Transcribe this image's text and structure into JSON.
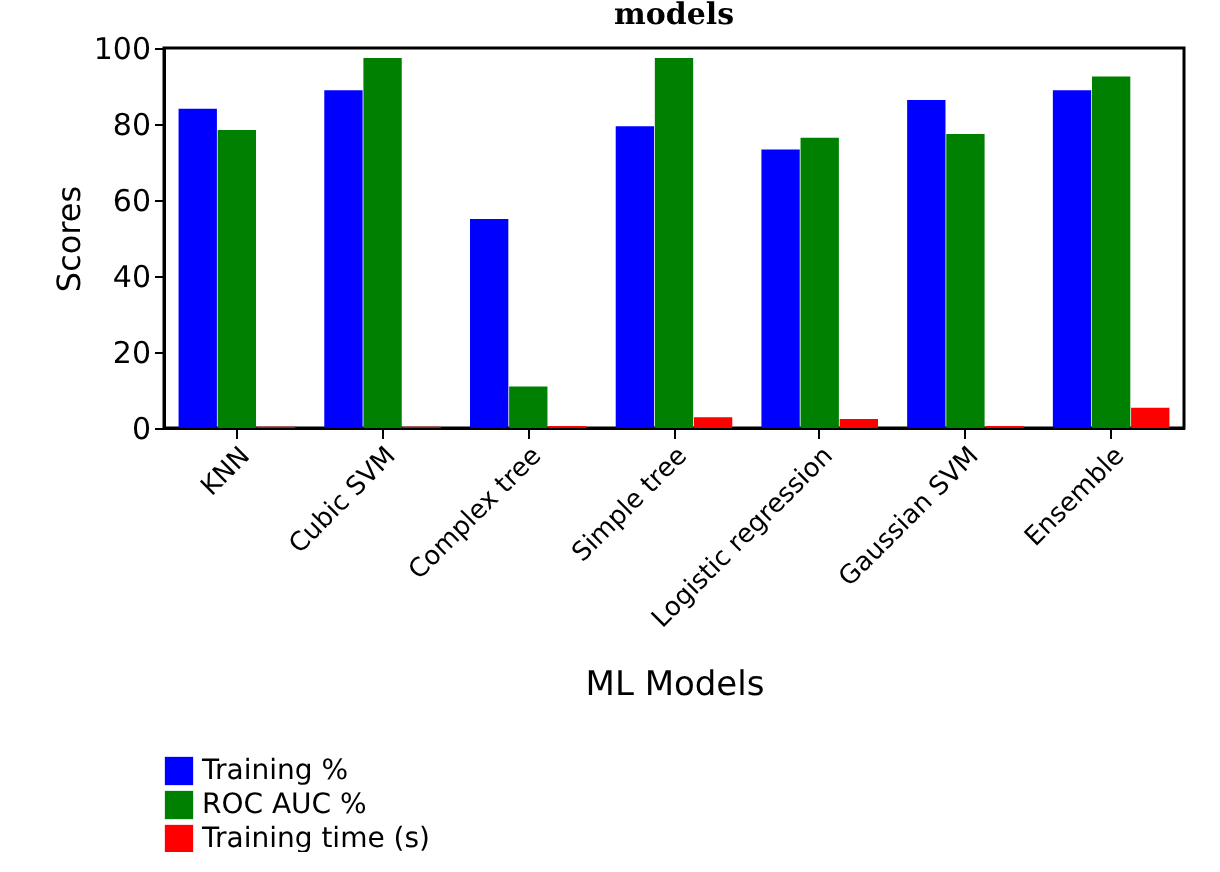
{
  "chart_data": {
    "type": "bar",
    "title": "models",
    "xlabel": "ML Models",
    "ylabel": "Scores",
    "categories": [
      "KNN",
      "Cubic SVM",
      "Complex tree",
      "Simple tree",
      "Logistic regression",
      "Gaussian SVM",
      "Ensemble"
    ],
    "series": [
      {
        "name": "Training %",
        "color": "#0000ff",
        "values": [
          84,
          88.9,
          55,
          79.4,
          73.3,
          86.3,
          88.9
        ]
      },
      {
        "name": "ROC AUC %",
        "color": "#008000",
        "values": [
          78.4,
          97.4,
          10.9,
          97.4,
          76.4,
          77.4,
          92.5
        ]
      },
      {
        "name": "Training time (s)",
        "color": "#ff0000",
        "values": [
          0.3,
          0.3,
          0.5,
          2.8,
          2.4,
          0.5,
          5.3
        ]
      }
    ],
    "ylim": [
      0,
      100
    ],
    "yticks": [
      0,
      20,
      40,
      60,
      80,
      100
    ],
    "grid": false,
    "legend": "bottom"
  }
}
